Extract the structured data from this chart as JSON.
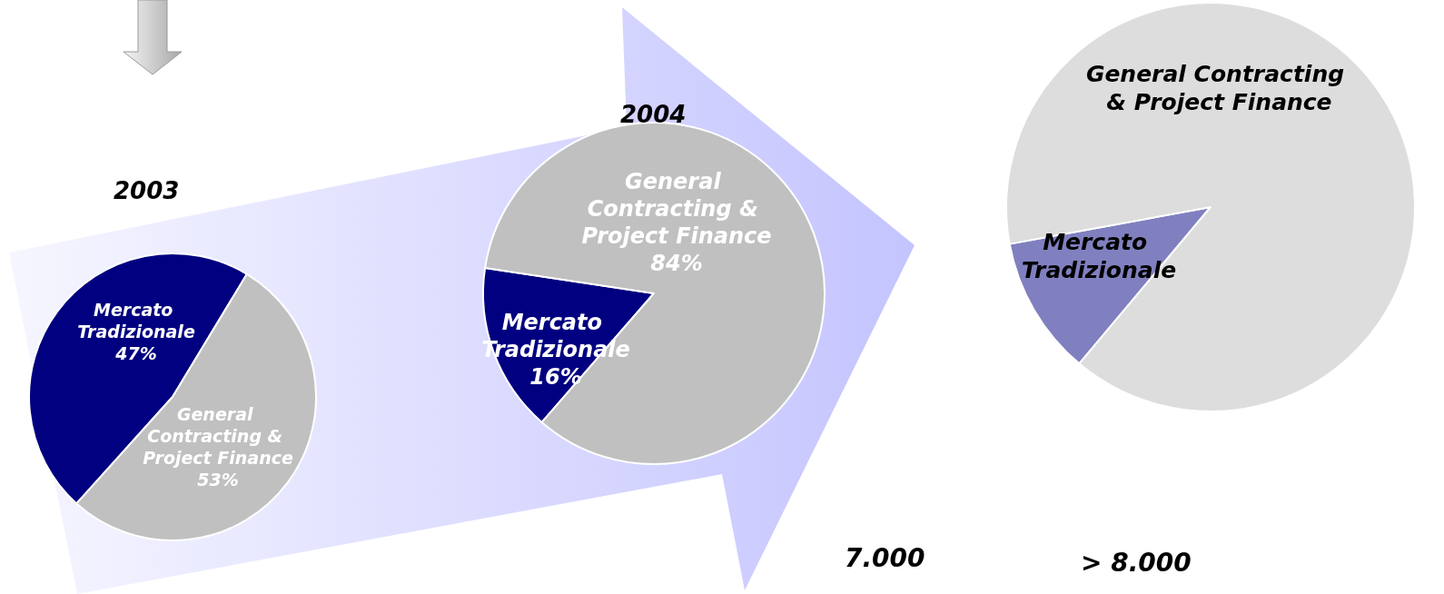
{
  "chart_data": [
    {
      "type": "pie",
      "title": "2003",
      "categories": [
        "Mercato Tradizionale",
        "General Contracting & Project Finance"
      ],
      "values": [
        47,
        53
      ],
      "colors": [
        "#000080",
        "#c0c0c0"
      ],
      "value_labels": [
        "47%",
        "53%"
      ]
    },
    {
      "type": "pie",
      "title": "2004",
      "categories": [
        "Mercato Tradizionale",
        "General Contracting & Project Finance"
      ],
      "values": [
        16,
        84
      ],
      "colors": [
        "#000080",
        "#c0c0c0"
      ],
      "value_labels": [
        "16%",
        "84%"
      ],
      "annotations": [
        "7.000"
      ]
    },
    {
      "type": "pie",
      "categories": [
        "Mercato Tradizionale",
        "General Contracting & Project Finance"
      ],
      "values": [
        11,
        89
      ],
      "colors": [
        "#8080c0",
        "#dddddd"
      ],
      "annotations": [
        "> 8.000"
      ]
    }
  ]
}
